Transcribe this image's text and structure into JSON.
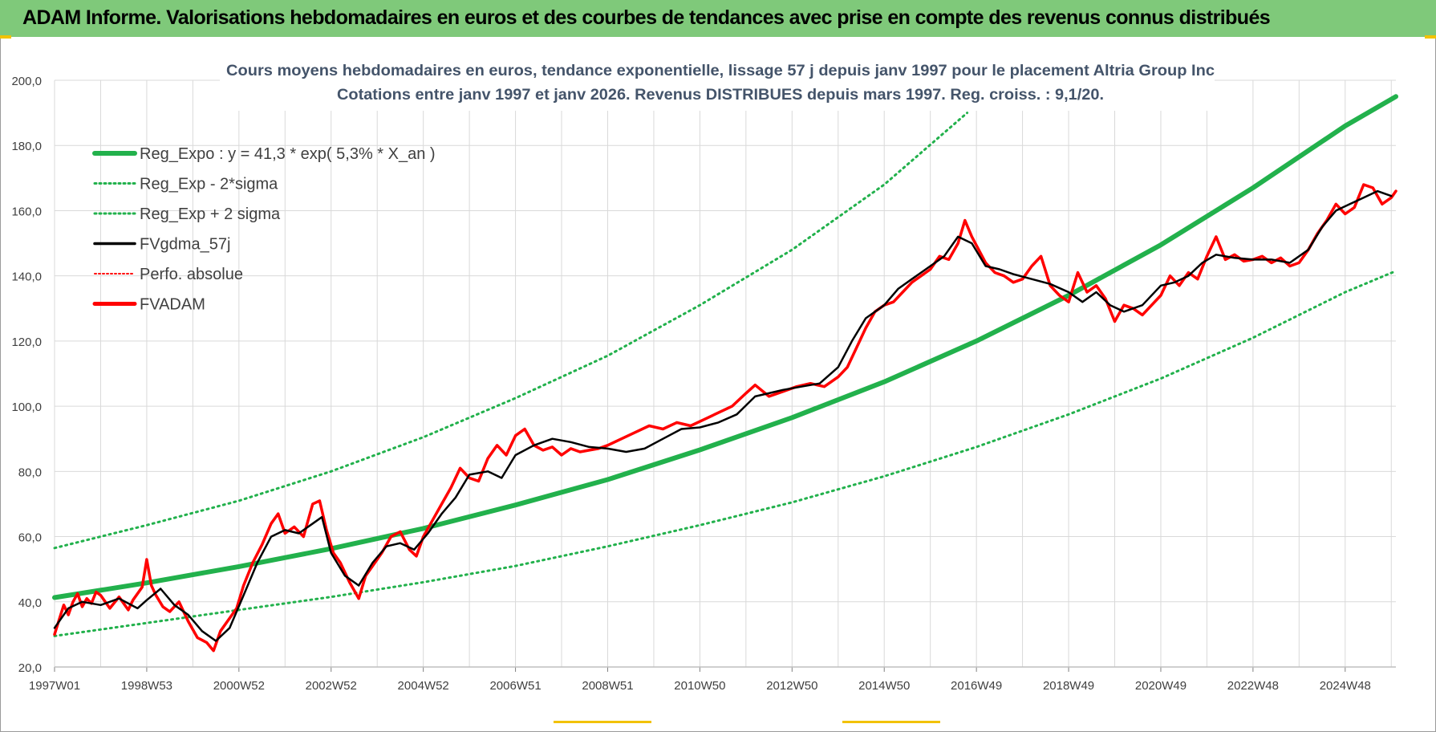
{
  "header": {
    "title": "ADAM Informe. Valorisations hebdomadaires en euros et des courbes de tendances avec prise en compte des revenus connus distribués"
  },
  "colors": {
    "banner": "#7fc97a",
    "trend": "#22b14c",
    "band": "#22b14c",
    "smooth": "#000000",
    "perf": "#ff0000",
    "price": "#ff0000"
  },
  "chart_data": {
    "type": "line",
    "title_line1": "Cours moyens hebdomadaires en euros, tendance exponentielle, lissage 57 j depuis janv 1997  pour le placement Altria Group Inc",
    "title_line2": "Cotations entre janv 1997 et janv 2026. Revenus DISTRIBUES depuis mars 1997.  Reg. croiss. : 9,1/20.",
    "xlabel": "",
    "ylabel": "",
    "ylim": [
      20,
      200
    ],
    "xlim": [
      1997.0,
      2026.1
    ],
    "grid": true,
    "legend_position": "top-left",
    "y_ticks": [
      "20,0",
      "40,0",
      "60,0",
      "80,0",
      "100,0",
      "120,0",
      "140,0",
      "160,0",
      "180,0",
      "200,0"
    ],
    "x_ticks": [
      {
        "label": "1997W01",
        "year": 1997.0
      },
      {
        "label": "1998W53",
        "year": 1999.0
      },
      {
        "label": "2000W52",
        "year": 2001.0
      },
      {
        "label": "2002W52",
        "year": 2003.0
      },
      {
        "label": "2004W52",
        "year": 2005.0
      },
      {
        "label": "2006W51",
        "year": 2007.0
      },
      {
        "label": "2008W51",
        "year": 2009.0
      },
      {
        "label": "2010W50",
        "year": 2011.0
      },
      {
        "label": "2012W50",
        "year": 2013.0
      },
      {
        "label": "2014W50",
        "year": 2015.0
      },
      {
        "label": "2016W49",
        "year": 2017.0
      },
      {
        "label": "2018W49",
        "year": 2019.0
      },
      {
        "label": "2020W49",
        "year": 2021.0
      },
      {
        "label": "2022W48",
        "year": 2023.0
      },
      {
        "label": "2024W48",
        "year": 2025.0
      }
    ],
    "legend": [
      {
        "name": "Reg_Expo : y = 41,3 * exp( 5,3% *  X_an )",
        "style": "trend"
      },
      {
        "name": "Reg_Exp - 2*sigma",
        "style": "band"
      },
      {
        "name": "Reg_Exp + 2 sigma",
        "style": "band"
      },
      {
        "name": "FVgdma_57j",
        "style": "smooth"
      },
      {
        "name": "Perfo. absolue",
        "style": "perf"
      },
      {
        "name": "FVADAM",
        "style": "price"
      }
    ],
    "series": [
      {
        "name": "Reg_Expo",
        "x": [
          1997.0,
          1999.0,
          2001.0,
          2003.0,
          2005.0,
          2007.0,
          2009.0,
          2011.0,
          2013.0,
          2015.0,
          2017.0,
          2019.0,
          2021.0,
          2023.0,
          2025.0,
          2026.1
        ],
        "values": [
          41.3,
          45.8,
          50.8,
          56.3,
          62.5,
          69.7,
          77.5,
          86.6,
          96.5,
          107.5,
          120.0,
          134.0,
          149.5,
          167.0,
          186.0,
          195.0
        ]
      },
      {
        "name": "Reg_Exp - 2*sigma",
        "x": [
          1997.0,
          1999.0,
          2001.0,
          2003.0,
          2005.0,
          2007.0,
          2009.0,
          2011.0,
          2013.0,
          2015.0,
          2017.0,
          2019.0,
          2021.0,
          2023.0,
          2025.0,
          2026.1
        ],
        "values": [
          29.5,
          33.5,
          37.5,
          41.5,
          46.0,
          51.0,
          57.0,
          63.5,
          70.5,
          78.5,
          87.5,
          97.5,
          108.5,
          121.0,
          135.0,
          141.5
        ]
      },
      {
        "name": "Reg_Exp + 2 sigma",
        "x": [
          1997.0,
          1999.0,
          2001.0,
          2003.0,
          2005.0,
          2007.0,
          2009.0,
          2011.0,
          2013.0,
          2015.0,
          2016.8
        ],
        "values": [
          56.5,
          63.5,
          71.0,
          80.0,
          90.5,
          102.5,
          115.5,
          131.0,
          148.0,
          168.0,
          190.0
        ]
      },
      {
        "name": "FVgdma_57j",
        "x": [
          1997.0,
          1997.3,
          1997.6,
          1998.0,
          1998.4,
          1998.8,
          1999.0,
          1999.3,
          1999.6,
          1999.9,
          2000.2,
          2000.5,
          2000.8,
          2001.1,
          2001.4,
          2001.7,
          2002.0,
          2002.3,
          2002.6,
          2002.8,
          2003.0,
          2003.3,
          2003.6,
          2003.9,
          2004.2,
          2004.5,
          2004.8,
          2005.1,
          2005.4,
          2005.7,
          2006.0,
          2006.4,
          2006.7,
          2007.0,
          2007.4,
          2007.8,
          2008.2,
          2008.6,
          2009.0,
          2009.4,
          2009.8,
          2010.2,
          2010.6,
          2011.0,
          2011.4,
          2011.8,
          2012.2,
          2012.5,
          2012.8,
          2013.2,
          2013.6,
          2014.0,
          2014.3,
          2014.6,
          2015.0,
          2015.3,
          2015.6,
          2016.0,
          2016.3,
          2016.6,
          2016.9,
          2017.2,
          2017.5,
          2017.8,
          2018.2,
          2018.6,
          2019.0,
          2019.3,
          2019.6,
          2019.9,
          2020.2,
          2020.6,
          2021.0,
          2021.3,
          2021.6,
          2021.9,
          2022.2,
          2022.6,
          2023.0,
          2023.4,
          2023.8,
          2024.2,
          2024.5,
          2024.8,
          2025.1,
          2025.4,
          2025.7,
          2026.0
        ],
        "values": [
          32.0,
          38.0,
          40.0,
          39.0,
          41.0,
          38.0,
          40.5,
          44.0,
          39.0,
          36.0,
          31.0,
          28.0,
          32.0,
          42.0,
          52.0,
          60.0,
          62.0,
          61.0,
          64.0,
          66.0,
          55.0,
          48.0,
          45.0,
          52.0,
          57.0,
          58.0,
          56.0,
          61.0,
          67.0,
          72.0,
          79.0,
          80.0,
          78.0,
          85.0,
          88.0,
          90.0,
          89.0,
          87.5,
          87.0,
          86.0,
          87.0,
          90.0,
          93.0,
          93.5,
          95.0,
          97.5,
          103.0,
          104.0,
          105.0,
          106.0,
          107.0,
          112.0,
          120.0,
          127.0,
          131.0,
          136.0,
          139.0,
          143.0,
          146.0,
          152.0,
          150.0,
          143.0,
          142.0,
          140.5,
          139.0,
          137.5,
          135.0,
          132.0,
          135.0,
          131.0,
          129.0,
          131.0,
          137.0,
          138.0,
          140.0,
          144.0,
          146.5,
          145.5,
          145.0,
          145.0,
          144.0,
          148.0,
          155.0,
          160.0,
          162.0,
          164.0,
          166.0,
          164.5
        ]
      },
      {
        "name": "FVADAM",
        "x": [
          1997.0,
          1997.1,
          1997.2,
          1997.3,
          1997.4,
          1997.5,
          1997.6,
          1997.7,
          1997.8,
          1997.9,
          1998.0,
          1998.2,
          1998.4,
          1998.6,
          1998.7,
          1998.9,
          1999.0,
          1999.1,
          1999.2,
          1999.35,
          1999.5,
          1999.7,
          1999.9,
          2000.1,
          2000.3,
          2000.45,
          2000.6,
          2000.8,
          2000.95,
          2001.1,
          2001.3,
          2001.5,
          2001.7,
          2001.85,
          2002.0,
          2002.2,
          2002.4,
          2002.6,
          2002.75,
          2002.9,
          2003.05,
          2003.2,
          2003.4,
          2003.6,
          2003.75,
          2003.9,
          2004.1,
          2004.3,
          2004.5,
          2004.7,
          2004.85,
          2005.0,
          2005.2,
          2005.4,
          2005.6,
          2005.8,
          2006.0,
          2006.2,
          2006.4,
          2006.6,
          2006.8,
          2007.0,
          2007.2,
          2007.4,
          2007.6,
          2007.8,
          2008.0,
          2008.2,
          2008.4,
          2008.6,
          2008.8,
          2009.0,
          2009.3,
          2009.6,
          2009.9,
          2010.2,
          2010.5,
          2010.8,
          2011.1,
          2011.4,
          2011.7,
          2012.0,
          2012.2,
          2012.5,
          2012.8,
          2013.1,
          2013.4,
          2013.7,
          2014.0,
          2014.2,
          2014.4,
          2014.6,
          2014.8,
          2015.0,
          2015.2,
          2015.4,
          2015.6,
          2015.8,
          2016.0,
          2016.2,
          2016.4,
          2016.6,
          2016.75,
          2016.9,
          2017.05,
          2017.2,
          2017.4,
          2017.6,
          2017.8,
          2018.0,
          2018.2,
          2018.4,
          2018.6,
          2018.8,
          2019.0,
          2019.2,
          2019.4,
          2019.6,
          2019.8,
          2020.0,
          2020.2,
          2020.4,
          2020.6,
          2020.8,
          2021.0,
          2021.2,
          2021.4,
          2021.6,
          2021.8,
          2022.0,
          2022.2,
          2022.4,
          2022.6,
          2022.8,
          2023.0,
          2023.2,
          2023.4,
          2023.6,
          2023.8,
          2024.0,
          2024.2,
          2024.4,
          2024.6,
          2024.8,
          2025.0,
          2025.2,
          2025.4,
          2025.6,
          2025.8,
          2026.0,
          2026.1
        ],
        "values": [
          30.0,
          34.5,
          39.0,
          36.0,
          40.0,
          42.5,
          38.5,
          41.0,
          39.5,
          43.0,
          42.0,
          38.0,
          41.5,
          37.5,
          40.5,
          44.5,
          53.0,
          45.0,
          42.0,
          38.5,
          37.0,
          40.0,
          34.0,
          29.0,
          27.5,
          25.0,
          31.0,
          35.0,
          38.0,
          45.0,
          52.0,
          57.5,
          64.0,
          67.0,
          61.0,
          63.0,
          60.0,
          70.0,
          71.0,
          62.0,
          55.0,
          52.0,
          46.0,
          41.0,
          48.0,
          51.0,
          55.0,
          60.0,
          61.5,
          56.0,
          54.0,
          60.0,
          65.0,
          70.0,
          75.0,
          81.0,
          78.0,
          77.0,
          84.0,
          88.0,
          85.0,
          91.0,
          93.0,
          88.0,
          86.5,
          87.5,
          85.0,
          87.0,
          86.0,
          86.5,
          87.0,
          88.0,
          90.0,
          92.0,
          94.0,
          93.0,
          95.0,
          94.0,
          96.0,
          98.0,
          100.0,
          104.0,
          106.5,
          103.0,
          104.5,
          106.0,
          107.0,
          106.0,
          109.0,
          112.0,
          118.0,
          124.0,
          129.0,
          131.0,
          132.0,
          135.0,
          138.0,
          140.0,
          142.0,
          146.0,
          145.0,
          150.0,
          157.0,
          152.0,
          148.0,
          144.0,
          141.0,
          140.0,
          138.0,
          139.0,
          143.0,
          146.0,
          137.0,
          134.0,
          132.0,
          141.0,
          135.0,
          137.0,
          133.0,
          126.0,
          131.0,
          130.0,
          128.0,
          131.0,
          134.0,
          140.0,
          137.0,
          141.0,
          139.0,
          146.0,
          152.0,
          145.0,
          146.5,
          144.5,
          145.0,
          146.0,
          144.0,
          145.5,
          143.0,
          144.0,
          148.0,
          153.0,
          157.0,
          162.0,
          159.0,
          161.0,
          168.0,
          167.0,
          162.0,
          164.0,
          166.0
        ]
      }
    ]
  }
}
